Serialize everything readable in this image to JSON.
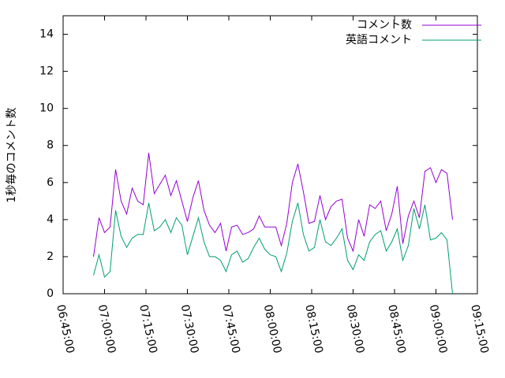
{
  "chart_data": {
    "type": "line",
    "ylabel": "1秒毎のコメント数",
    "x": [
      "06:56:00",
      "06:58:00",
      "07:00:00",
      "07:02:00",
      "07:04:00",
      "07:06:00",
      "07:08:00",
      "07:10:00",
      "07:12:00",
      "07:14:00",
      "07:16:00",
      "07:18:00",
      "07:20:00",
      "07:22:00",
      "07:24:00",
      "07:26:00",
      "07:28:00",
      "07:30:00",
      "07:32:00",
      "07:34:00",
      "07:36:00",
      "07:38:00",
      "07:40:00",
      "07:42:00",
      "07:44:00",
      "07:46:00",
      "07:48:00",
      "07:50:00",
      "07:52:00",
      "07:54:00",
      "07:56:00",
      "07:58:00",
      "08:00:00",
      "08:02:00",
      "08:04:00",
      "08:06:00",
      "08:08:00",
      "08:10:00",
      "08:12:00",
      "08:14:00",
      "08:16:00",
      "08:18:00",
      "08:20:00",
      "08:22:00",
      "08:24:00",
      "08:26:00",
      "08:28:00",
      "08:30:00",
      "08:32:00",
      "08:34:00",
      "08:36:00",
      "08:38:00",
      "08:40:00",
      "08:42:00",
      "08:44:00",
      "08:46:00",
      "08:48:00",
      "08:50:00",
      "08:52:00",
      "08:54:00",
      "08:56:00",
      "08:58:00",
      "09:00:00",
      "09:02:00",
      "09:04:00",
      "09:06:00"
    ],
    "series": [
      {
        "name": "コメント数",
        "color": "#9400d3",
        "values": [
          2.0,
          4.1,
          3.3,
          3.6,
          6.7,
          5.0,
          4.3,
          5.7,
          5.0,
          4.8,
          7.6,
          5.4,
          5.9,
          6.4,
          5.3,
          6.1,
          5.0,
          3.9,
          5.2,
          6.1,
          4.5,
          3.7,
          3.3,
          3.8,
          2.3,
          3.6,
          3.7,
          3.2,
          3.3,
          3.5,
          4.2,
          3.6,
          3.6,
          3.6,
          2.6,
          3.8,
          6.0,
          7.0,
          5.5,
          3.8,
          3.9,
          5.3,
          4.0,
          4.7,
          5.0,
          5.1,
          3.0,
          2.3,
          4.0,
          3.1,
          4.8,
          4.6,
          5.0,
          3.4,
          4.3,
          5.8,
          2.7,
          4.2,
          5.0,
          4.1,
          6.6,
          6.8,
          6.0,
          6.7,
          6.5,
          4.0
        ]
      },
      {
        "name": "英語コメント",
        "color": "#009e73",
        "values": [
          1.0,
          2.1,
          0.9,
          1.2,
          4.5,
          3.1,
          2.5,
          3.0,
          3.2,
          3.2,
          4.9,
          3.4,
          3.6,
          4.0,
          3.3,
          4.1,
          3.7,
          2.1,
          3.1,
          4.1,
          2.8,
          2.0,
          2.0,
          1.8,
          1.2,
          2.1,
          2.3,
          1.7,
          1.9,
          2.5,
          3.0,
          2.4,
          2.1,
          2.0,
          1.2,
          2.2,
          3.9,
          4.9,
          3.2,
          2.3,
          2.5,
          4.0,
          2.8,
          2.6,
          3.0,
          3.5,
          1.8,
          1.3,
          2.1,
          1.8,
          2.8,
          3.2,
          3.4,
          2.3,
          2.8,
          3.5,
          1.8,
          2.6,
          4.6,
          3.5,
          4.8,
          2.9,
          3.0,
          3.3,
          2.9,
          0.0
        ]
      }
    ],
    "xlim": [
      "06:45:00",
      "09:15:00"
    ],
    "xticks": [
      "06:45:00",
      "07:00:00",
      "07:15:00",
      "07:30:00",
      "07:45:00",
      "08:00:00",
      "08:15:00",
      "08:30:00",
      "08:45:00",
      "09:00:00",
      "09:15:00"
    ],
    "ylim": [
      0,
      15
    ],
    "yticks": [
      0,
      2,
      4,
      6,
      8,
      10,
      12,
      14
    ],
    "legend": "top right"
  }
}
